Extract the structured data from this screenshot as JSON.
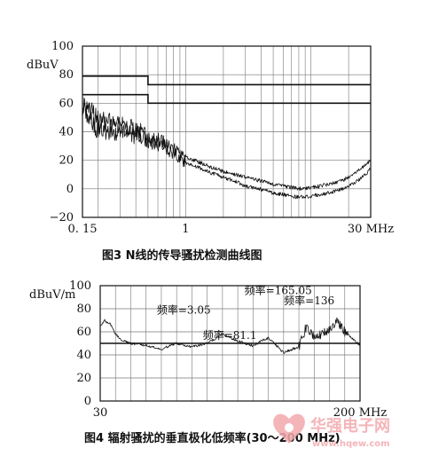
{
  "chart_data": [
    {
      "type": "line",
      "caption": "图3 N线的传导骚扰检测曲线图",
      "ylabel": "dBuV",
      "xscale": "log",
      "xlim": [
        0.15,
        30
      ],
      "ylim": [
        -20,
        100
      ],
      "x_ticks": [
        {
          "value": 0.15,
          "label": "0. 15"
        },
        {
          "value": 1,
          "label": "1"
        },
        {
          "value": 30,
          "label": "30 MHz"
        }
      ],
      "y_ticks": [
        {
          "value": 100,
          "label": "100"
        },
        {
          "value": 80,
          "label": "80"
        },
        {
          "value": 60,
          "label": "60"
        },
        {
          "value": 40,
          "label": "40"
        },
        {
          "value": 20,
          "label": "20"
        },
        {
          "value": 0,
          "label": "0"
        },
        {
          "value": -20,
          "label": "−20"
        }
      ],
      "limit_lines": [
        {
          "x": [
            0.15,
            0.5,
            0.5,
            30
          ],
          "y": [
            79,
            79,
            73,
            73
          ]
        },
        {
          "x": [
            0.15,
            0.5,
            0.5,
            30
          ],
          "y": [
            66,
            66,
            60,
            60
          ]
        }
      ],
      "series": [
        {
          "x": [
            0.15,
            0.2,
            0.3,
            0.5,
            0.8,
            1.0,
            1.5,
            2,
            3,
            5,
            8,
            12,
            18,
            25,
            30
          ],
          "y": [
            60,
            48,
            45,
            38,
            28,
            22,
            16,
            12,
            8,
            3,
            0,
            2,
            6,
            14,
            20
          ]
        },
        {
          "x": [
            0.15,
            0.2,
            0.3,
            0.5,
            0.8,
            1.0,
            1.5,
            2,
            3,
            5,
            8,
            12,
            18,
            25,
            30
          ],
          "y": [
            55,
            42,
            40,
            34,
            25,
            18,
            12,
            8,
            2,
            -3,
            -6,
            -4,
            0,
            7,
            14
          ]
        }
      ],
      "grid": true
    },
    {
      "type": "line",
      "caption": "图4 辐射骚扰的垂直极化低频率(30～200 MHz)",
      "ylabel": "dBuV/m",
      "xlim": [
        30,
        200
      ],
      "ylim": [
        0,
        100
      ],
      "x_ticks": [
        {
          "value": 30,
          "label": "30"
        },
        {
          "value": 200,
          "label": "200 MHz"
        }
      ],
      "y_ticks": [
        {
          "value": 100,
          "label": "100"
        },
        {
          "value": 80,
          "label": "80"
        },
        {
          "value": 60,
          "label": "60"
        },
        {
          "value": 40,
          "label": "40"
        },
        {
          "value": 20,
          "label": "20"
        },
        {
          "value": 0,
          "label": "0"
        }
      ],
      "limit_lines": [
        {
          "x": [
            30,
            200
          ],
          "y": [
            50,
            50
          ]
        }
      ],
      "series": [
        {
          "x": [
            30,
            33,
            37,
            40,
            45,
            50,
            60,
            70,
            80,
            90,
            100,
            110,
            120,
            130,
            140,
            150,
            160,
            165,
            170,
            180,
            185,
            190,
            200
          ],
          "y": [
            65,
            70,
            66,
            58,
            52,
            50,
            48,
            45,
            50,
            47,
            50,
            58,
            52,
            48,
            55,
            42,
            47,
            65,
            55,
            62,
            70,
            60,
            48
          ]
        }
      ],
      "annotations": [
        {
          "label": "频率=3.05",
          "x": 103,
          "y": 65
        },
        {
          "label": "频率=81.1",
          "x": 125,
          "y": 57
        },
        {
          "label": "频率=165.05",
          "x": 165,
          "y": 65
        },
        {
          "label": "频率=136",
          "x": 185,
          "y": 70
        }
      ],
      "grid": true
    }
  ],
  "watermark": {
    "line1": "华强电子网",
    "line2": "www.hqew.com",
    "color": "#f3a9ad"
  }
}
